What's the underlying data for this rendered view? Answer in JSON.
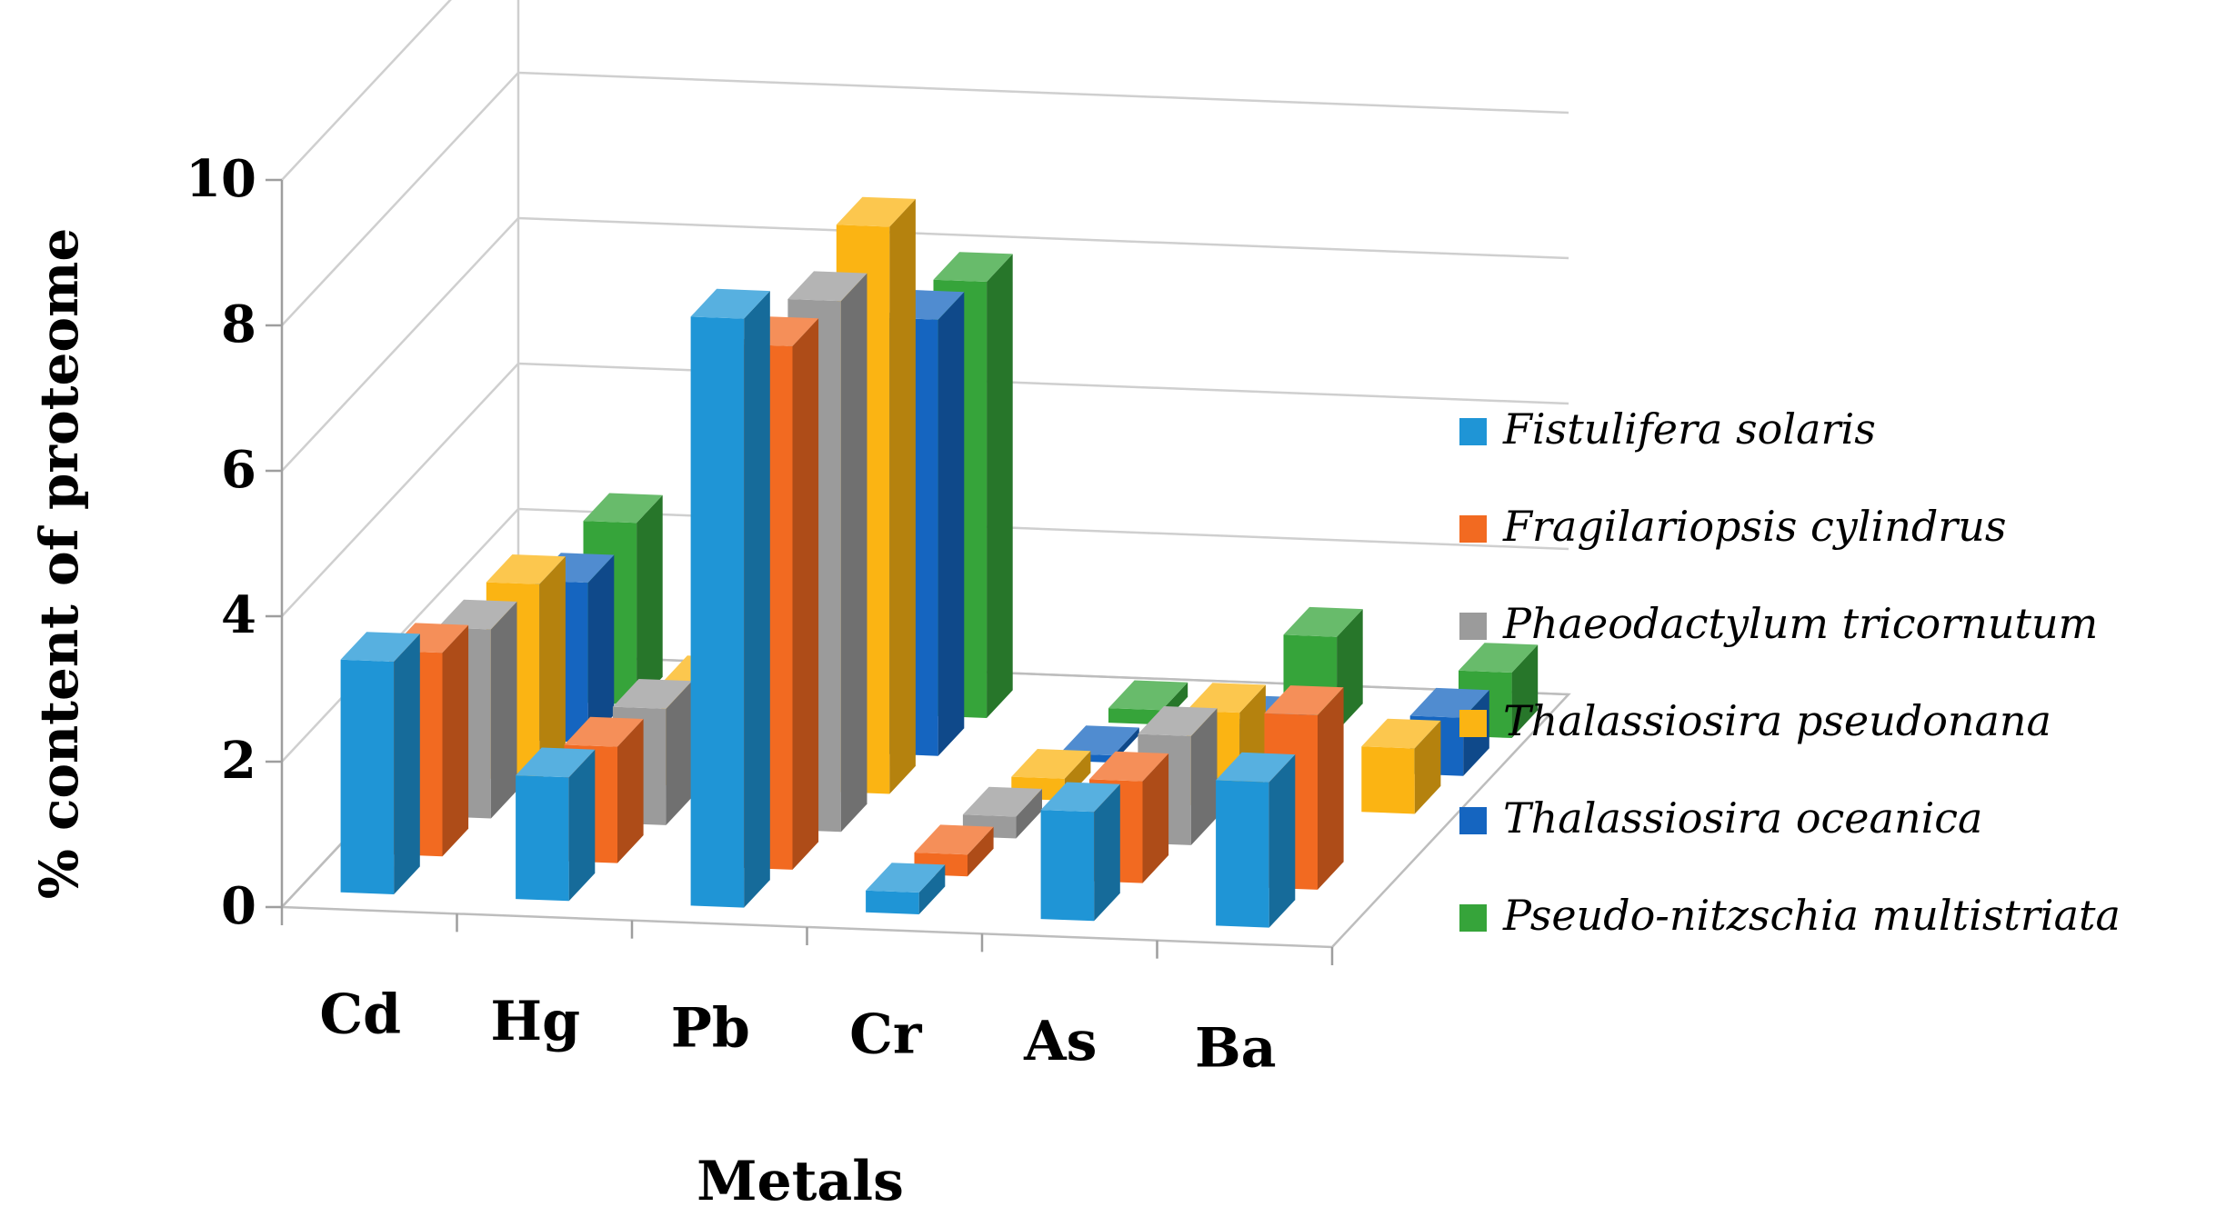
{
  "chart_data": {
    "type": "bar",
    "style": "3d-clustered",
    "title": "",
    "xlabel": "Metals",
    "ylabel": "% content of proteome",
    "ylim": [
      0,
      10
    ],
    "yticks": [
      0,
      2,
      4,
      6,
      8,
      10
    ],
    "grid": true,
    "legend_position": "right",
    "categories": [
      "Cd",
      "Hg",
      "Pb",
      "Cr",
      "As",
      "Ba"
    ],
    "series": [
      {
        "name": "Fistulifera solaris",
        "color": "#1f95d6",
        "values": [
          3.2,
          1.7,
          8.1,
          0.3,
          1.5,
          2.0
        ]
      },
      {
        "name": "Fragilariopsis cylindrus",
        "color": "#f26a21",
        "values": [
          2.8,
          1.6,
          7.2,
          0.3,
          1.4,
          2.4
        ]
      },
      {
        "name": "Phaeodactylum tricornutum",
        "color": "#9b9b9b",
        "values": [
          2.6,
          1.6,
          7.3,
          0.3,
          1.5,
          0.0
        ]
      },
      {
        "name": "Thalassiosira pseudonana",
        "color": "#fbb413",
        "values": [
          2.7,
          1.4,
          7.8,
          0.3,
          1.3,
          0.9
        ]
      },
      {
        "name": "Thalassiosira oceanica",
        "color": "#1565c0",
        "values": [
          2.2,
          0.8,
          6.0,
          0.1,
          0.6,
          0.8
        ]
      },
      {
        "name": "Pseudo-nitzschia multistriata",
        "color": "#36a43a",
        "values": [
          2.5,
          0.0,
          6.0,
          0.2,
          1.3,
          0.9
        ]
      }
    ]
  }
}
